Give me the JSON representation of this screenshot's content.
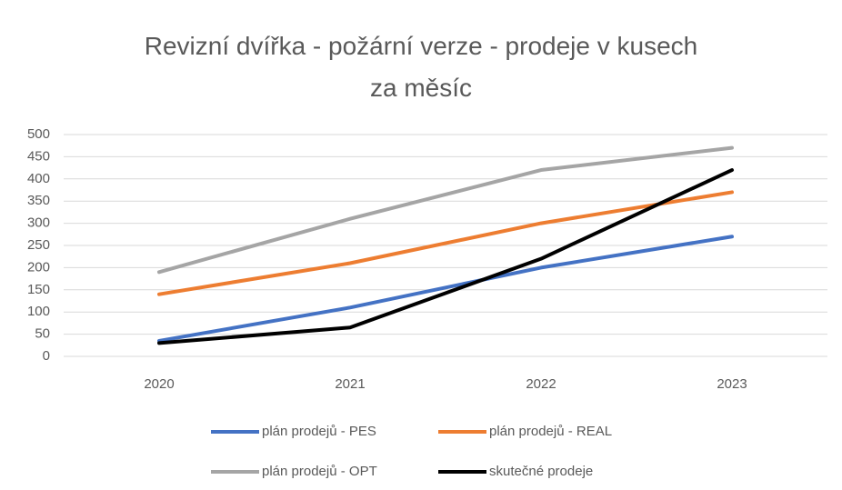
{
  "chart_data": {
    "type": "line",
    "title": "Revizní dvířka - požární verze - prodeje v kusech za měsíc",
    "categories": [
      "2020",
      "2021",
      "2022",
      "2023"
    ],
    "series": [
      {
        "name": "plán prodejů - PES",
        "color": "#4472c4",
        "values": [
          35,
          110,
          200,
          270
        ]
      },
      {
        "name": "plán prodejů - REAL",
        "color": "#ed7d31",
        "values": [
          140,
          210,
          300,
          370
        ]
      },
      {
        "name": "plán prodejů - OPT",
        "color": "#a5a5a5",
        "values": [
          190,
          310,
          420,
          470
        ]
      },
      {
        "name": "skutečné prodeje",
        "color": "#000000",
        "values": [
          30,
          65,
          220,
          420
        ]
      }
    ],
    "ylim": [
      0,
      500
    ],
    "yticks": [
      0,
      50,
      100,
      150,
      200,
      250,
      300,
      350,
      400,
      450,
      500
    ],
    "grid": true,
    "legend": "bottom"
  }
}
